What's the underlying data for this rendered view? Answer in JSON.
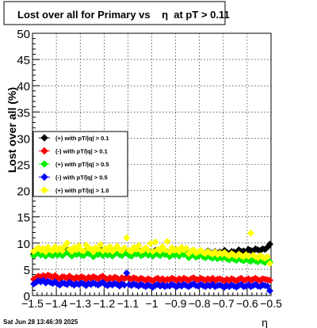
{
  "chart_data": {
    "type": "scatter",
    "title": "Lost over all for Primary vs    η  at pT > 0.11",
    "xlabel": "η",
    "ylabel": "Lost over all (%)",
    "xlim": [
      -1.5,
      -0.5
    ],
    "ylim": [
      0,
      50
    ],
    "x_ticks": [
      "−1.5",
      "−1.4",
      "−1.3",
      "−1.2",
      "−1.1",
      "−1",
      "−0.9",
      "−0.8",
      "−0.7",
      "−0.6",
      "−0.5"
    ],
    "y_ticks": [
      "0",
      "5",
      "10",
      "15",
      "20",
      "25",
      "30",
      "35",
      "40",
      "45",
      "50"
    ],
    "grid": true,
    "legend_position": "middle-left",
    "timestamp": "Sat Jun 28 13:46:39 2025",
    "x": [
      -1.495,
      -1.485,
      -1.475,
      -1.465,
      -1.455,
      -1.445,
      -1.435,
      -1.425,
      -1.415,
      -1.405,
      -1.395,
      -1.385,
      -1.375,
      -1.365,
      -1.355,
      -1.345,
      -1.335,
      -1.325,
      -1.315,
      -1.305,
      -1.295,
      -1.285,
      -1.275,
      -1.265,
      -1.255,
      -1.245,
      -1.235,
      -1.225,
      -1.215,
      -1.205,
      -1.195,
      -1.185,
      -1.175,
      -1.165,
      -1.155,
      -1.145,
      -1.135,
      -1.125,
      -1.115,
      -1.105,
      -1.095,
      -1.085,
      -1.075,
      -1.065,
      -1.055,
      -1.045,
      -1.035,
      -1.025,
      -1.015,
      -1.005,
      -0.995,
      -0.985,
      -0.975,
      -0.965,
      -0.955,
      -0.945,
      -0.935,
      -0.925,
      -0.915,
      -0.905,
      -0.895,
      -0.885,
      -0.875,
      -0.865,
      -0.855,
      -0.845,
      -0.835,
      -0.825,
      -0.815,
      -0.805,
      -0.795,
      -0.785,
      -0.775,
      -0.765,
      -0.755,
      -0.745,
      -0.735,
      -0.725,
      -0.715,
      -0.705,
      -0.695,
      -0.685,
      -0.675,
      -0.665,
      -0.655,
      -0.645,
      -0.635,
      -0.625,
      -0.615,
      -0.605,
      -0.595,
      -0.585,
      -0.575,
      -0.565,
      -0.555,
      -0.545,
      -0.535,
      -0.525,
      -0.515,
      -0.505
    ],
    "series": [
      {
        "name": "(+) with pT/|q| > 0.1",
        "color": "#000000",
        "values": [
          7.9,
          8.2,
          8.4,
          8.0,
          8.3,
          7.7,
          8.5,
          8.1,
          7.8,
          8.6,
          8.0,
          8.4,
          7.9,
          8.3,
          8.7,
          8.2,
          7.8,
          8.5,
          8.1,
          8.4,
          8.0,
          7.9,
          8.6,
          8.3,
          8.2,
          7.7,
          8.4,
          8.1,
          8.8,
          7.9,
          8.3,
          8.0,
          8.5,
          7.8,
          8.2,
          8.6,
          8.1,
          7.9,
          8.4,
          8.3,
          8.0,
          7.8,
          8.5,
          8.2,
          8.7,
          7.9,
          8.1,
          8.4,
          8.0,
          8.3,
          7.8,
          8.6,
          8.2,
          7.9,
          8.5,
          8.1,
          8.3,
          7.7,
          8.4,
          8.0,
          8.2,
          7.8,
          8.5,
          8.1,
          8.3,
          7.6,
          8.2,
          8.4,
          7.9,
          8.0,
          8.3,
          8.1,
          7.8,
          8.5,
          8.2,
          8.0,
          8.4,
          7.9,
          8.3,
          8.1,
          8.6,
          8.2,
          8.0,
          8.4,
          8.3,
          8.1,
          8.7,
          8.4,
          8.5,
          8.2,
          8.8,
          8.6,
          8.5,
          8.9,
          8.7,
          8.6,
          8.9,
          8.8,
          9.2,
          9.8
        ]
      },
      {
        "name": "(-) with pT/|q| > 0.1",
        "color": "#ff0000",
        "values": [
          3.1,
          3.4,
          3.7,
          3.5,
          3.8,
          3.6,
          3.9,
          3.7,
          3.5,
          3.8,
          3.4,
          3.2,
          3.6,
          3.5,
          3.3,
          3.7,
          3.4,
          3.2,
          3.5,
          3.3,
          3.6,
          3.4,
          3.1,
          3.5,
          3.3,
          3.6,
          3.4,
          3.2,
          3.5,
          3.7,
          3.3,
          3.1,
          3.4,
          3.2,
          3.5,
          3.3,
          3.0,
          3.4,
          3.2,
          3.5,
          3.3,
          3.1,
          3.4,
          3.2,
          3.0,
          3.3,
          3.1,
          2.9,
          3.2,
          3.0,
          2.8,
          3.1,
          3.3,
          3.0,
          3.2,
          2.9,
          3.1,
          3.0,
          3.3,
          3.1,
          2.9,
          3.2,
          3.0,
          3.3,
          3.1,
          2.9,
          3.2,
          3.4,
          3.1,
          3.0,
          3.3,
          3.1,
          2.9,
          3.2,
          3.0,
          3.3,
          2.9,
          3.1,
          3.2,
          3.0,
          2.8,
          3.1,
          2.9,
          3.2,
          3.0,
          2.8,
          3.1,
          3.3,
          2.9,
          3.0,
          3.2,
          2.9,
          3.1,
          3.3,
          3.0,
          2.9,
          3.2,
          3.1,
          3.0,
          2.9
        ]
      },
      {
        "name": "(+) with pT/|q| > 0.5",
        "color": "#00ee00",
        "values": [
          7.6,
          7.9,
          8.1,
          7.7,
          8.0,
          7.5,
          8.2,
          7.8,
          7.6,
          8.3,
          7.7,
          8.1,
          7.6,
          8.0,
          8.4,
          7.9,
          7.5,
          8.2,
          7.8,
          8.1,
          7.7,
          7.6,
          8.3,
          8.0,
          7.9,
          7.4,
          8.1,
          7.8,
          8.5,
          7.6,
          8.0,
          7.7,
          8.2,
          7.5,
          7.9,
          8.3,
          7.8,
          7.6,
          8.1,
          8.0,
          7.7,
          7.5,
          8.2,
          7.9,
          8.4,
          7.6,
          7.8,
          8.1,
          7.7,
          8.0,
          7.5,
          8.3,
          7.9,
          7.6,
          8.2,
          7.8,
          8.0,
          7.4,
          8.1,
          7.7,
          7.9,
          7.5,
          8.2,
          7.8,
          8.0,
          7.2,
          7.6,
          7.9,
          7.3,
          7.5,
          7.8,
          7.4,
          7.2,
          7.6,
          7.3,
          7.1,
          7.5,
          7.0,
          7.3,
          7.1,
          7.4,
          7.0,
          6.8,
          7.2,
          6.9,
          6.7,
          7.1,
          6.8,
          6.6,
          7.0,
          6.7,
          6.5,
          6.9,
          6.6,
          6.4,
          6.8,
          6.5,
          6.3,
          6.6,
          6.4
        ]
      },
      {
        "name": "(-) with pT/|q| > 0.5",
        "color": "#0000ff",
        "values": [
          2.2,
          2.5,
          2.8,
          2.6,
          2.9,
          2.4,
          2.7,
          2.5,
          2.3,
          2.6,
          2.2,
          2.0,
          2.4,
          2.3,
          2.1,
          2.5,
          2.2,
          2.0,
          2.3,
          2.1,
          2.4,
          2.2,
          1.9,
          2.3,
          2.1,
          2.4,
          2.2,
          2.0,
          2.3,
          2.5,
          2.1,
          1.9,
          2.2,
          2.0,
          2.3,
          2.1,
          1.8,
          2.2,
          2.0,
          4.3,
          2.1,
          1.9,
          2.2,
          2.0,
          1.8,
          2.1,
          1.9,
          1.7,
          2.0,
          1.8,
          1.6,
          1.9,
          2.1,
          1.8,
          2.0,
          1.7,
          1.9,
          1.8,
          2.1,
          1.9,
          1.7,
          2.0,
          1.8,
          2.1,
          1.9,
          1.7,
          2.0,
          2.2,
          1.9,
          1.8,
          2.1,
          1.9,
          1.7,
          2.0,
          1.8,
          2.1,
          1.7,
          1.9,
          2.0,
          1.8,
          1.6,
          1.9,
          1.7,
          2.0,
          1.8,
          1.6,
          1.9,
          2.1,
          1.7,
          1.8,
          2.0,
          1.7,
          1.9,
          2.1,
          1.8,
          1.7,
          2.0,
          1.9,
          1.8,
          0.9
        ]
      },
      {
        "name": "(+) with pT/|q| > 1.0",
        "color": "#ffff00",
        "values": [
          8.4,
          8.8,
          9.1,
          8.6,
          9.0,
          8.3,
          9.2,
          8.7,
          8.5,
          9.3,
          8.6,
          9.0,
          8.5,
          9.4,
          10.0,
          8.8,
          8.4,
          9.2,
          8.7,
          9.5,
          8.6,
          8.5,
          9.6,
          9.0,
          8.9,
          8.3,
          9.1,
          8.8,
          9.7,
          8.5,
          9.0,
          8.6,
          9.3,
          8.4,
          8.8,
          9.4,
          8.7,
          8.5,
          9.1,
          11.0,
          8.6,
          8.4,
          9.2,
          8.8,
          9.5,
          8.5,
          8.7,
          9.1,
          8.6,
          9.9,
          8.4,
          10.2,
          8.8,
          8.5,
          9.3,
          8.7,
          10.3,
          8.3,
          9.1,
          8.6,
          8.8,
          8.4,
          9.2,
          8.7,
          9.0,
          8.0,
          8.4,
          8.7,
          8.1,
          8.3,
          8.6,
          8.2,
          8.0,
          8.4,
          8.1,
          7.9,
          8.3,
          7.8,
          8.1,
          7.9,
          8.2,
          7.8,
          7.6,
          8.0,
          7.7,
          7.5,
          7.9,
          7.6,
          7.4,
          7.8,
          7.5,
          11.9,
          7.7,
          7.4,
          7.2,
          7.6,
          7.3,
          7.1,
          7.4,
          6.1
        ]
      }
    ]
  }
}
